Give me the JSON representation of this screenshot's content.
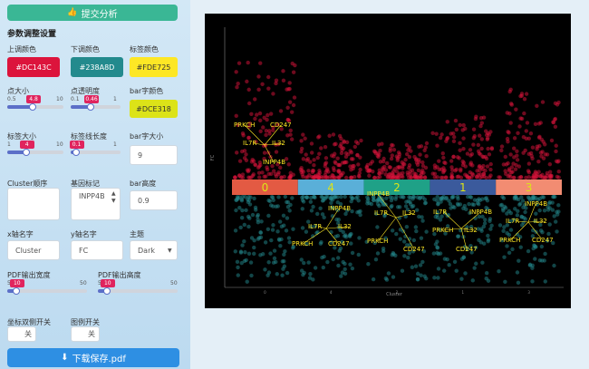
{
  "sidebar": {
    "submit_button": "提交分析",
    "section_title": "参数调整设置",
    "color_inputs": [
      {
        "label": "上调颜色",
        "value": "#DC143C"
      },
      {
        "label": "下调颜色",
        "value": "#238A8D"
      },
      {
        "label": "标签颜色",
        "value": "#FDE725"
      }
    ],
    "sliders": [
      {
        "label": "点大小",
        "min": 0.5,
        "max": 10,
        "value": 4.8
      },
      {
        "label": "点透明度",
        "min": 0.1,
        "max": 1,
        "value": 0.46
      },
      {
        "label": "标签大小",
        "min": 1,
        "max": 10,
        "value": 4
      },
      {
        "label": "标签线长度",
        "min": 0,
        "max": 1,
        "value": 0.1
      },
      {
        "label": "PDF输出宽度",
        "min": 5,
        "max": 50,
        "value": 10
      },
      {
        "label": "PDF输出高度",
        "min": 5,
        "max": 50,
        "value": 10
      }
    ],
    "bar_text_color": {
      "label": "bar字颜色",
      "value": "#DCE318"
    },
    "bar_text_size": {
      "label": "bar字大小",
      "value": "9"
    },
    "cluster_order": {
      "label": "Cluster顺序"
    },
    "gene_mark": {
      "label": "基因标记",
      "value": "INPP4B"
    },
    "bar_height": {
      "label": "bar高度",
      "value": "0.9"
    },
    "x_name": {
      "label": "x轴名字",
      "value": "Cluster"
    },
    "y_name": {
      "label": "y轴名字",
      "value": "FC"
    },
    "theme": {
      "label": "主题",
      "value": "Dark"
    },
    "toggles": [
      {
        "label": "坐标双侧开关",
        "state": "关"
      },
      {
        "label": "图例开关",
        "state": "关"
      }
    ],
    "download_button": "下载保存.pdf"
  },
  "plot": {
    "x_label": "Cluster",
    "y_label": "FC",
    "clusters": [
      {
        "name": "0",
        "color": "#E35A43",
        "labels": [
          "PRKCH",
          "CD247",
          "IL7R",
          "IL32",
          "INPP4B"
        ]
      },
      {
        "name": "4",
        "color": "#5AAFD8",
        "labels": [
          "PRKCH",
          "CD247",
          "IL7R",
          "IL32",
          "INPP4B"
        ]
      },
      {
        "name": "2",
        "color": "#1FA187",
        "labels": [
          "PRKCH",
          "CD247",
          "IL7R",
          "IL32",
          "INPP4B"
        ]
      },
      {
        "name": "1",
        "color": "#3B5A9C",
        "labels": [
          "PRKCH",
          "CD247",
          "IL7R",
          "IL32",
          "INPP4B"
        ]
      },
      {
        "name": "3",
        "color": "#F28C72",
        "labels": [
          "PRKCH",
          "CD247",
          "IL7R",
          "IL32",
          "INPP4B"
        ]
      }
    ]
  }
}
